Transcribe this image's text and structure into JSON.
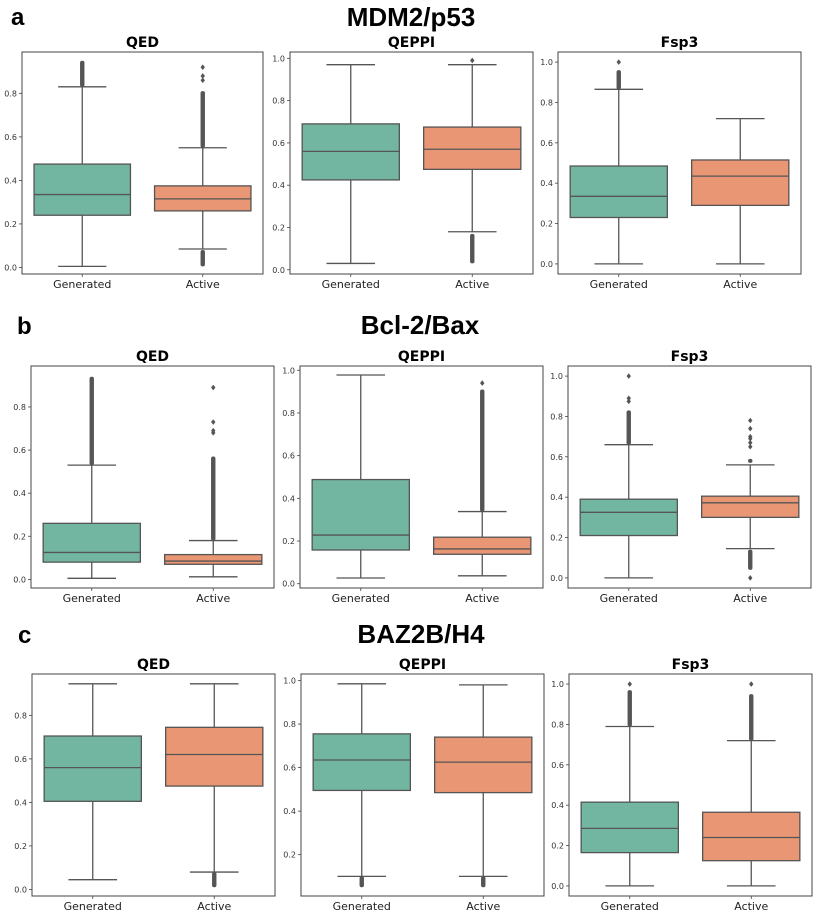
{
  "colors": {
    "generated": "#72b6a1",
    "active": "#e99674",
    "line": "#555555",
    "axis": "#444444"
  },
  "chart_data": [
    {
      "panel": "a",
      "group": "MDM2/p53",
      "title": "QED",
      "type": "box",
      "categories": [
        "Generated",
        "Active"
      ],
      "yticks": [
        "0.0",
        "0.2",
        "0.4",
        "0.6",
        "0.8"
      ],
      "ytick_values": [
        0,
        0.2,
        0.4,
        0.6,
        0.8
      ],
      "ylim": [
        -0.03,
        0.99
      ],
      "series": [
        {
          "name": "Generated",
          "whisker_low": 0.005,
          "q1": 0.24,
          "median": 0.335,
          "q3": 0.475,
          "whisker_high": 0.83,
          "outliers_high": [
            0.83,
            0.95
          ],
          "outliers_low": []
        },
        {
          "name": "Active",
          "whisker_low": 0.085,
          "q1": 0.26,
          "median": 0.315,
          "q3": 0.375,
          "whisker_high": 0.55,
          "outliers_high": [
            0.55,
            0.81
          ],
          "outlier_points_high": [
            0.86,
            0.88,
            0.92
          ],
          "outliers_low": [
            0.005,
            0.08
          ]
        }
      ]
    },
    {
      "panel": "a",
      "group": "MDM2/p53",
      "title": "QEPPI",
      "type": "box",
      "categories": [
        "Generated",
        "Active"
      ],
      "yticks": [
        "0.0",
        "0.2",
        "0.4",
        "0.6",
        "0.8",
        "1.0"
      ],
      "ytick_values": [
        0,
        0.2,
        0.4,
        0.6,
        0.8,
        1.0
      ],
      "ylim": [
        -0.02,
        1.03
      ],
      "series": [
        {
          "name": "Generated",
          "whisker_low": 0.03,
          "q1": 0.425,
          "median": 0.56,
          "q3": 0.69,
          "whisker_high": 0.97,
          "outliers_high": [],
          "outliers_low": []
        },
        {
          "name": "Active",
          "whisker_low": 0.18,
          "q1": 0.475,
          "median": 0.57,
          "q3": 0.675,
          "whisker_high": 0.97,
          "outliers_high": [],
          "outlier_points_high": [
            0.99
          ],
          "outliers_low": [
            0.03,
            0.17
          ]
        }
      ]
    },
    {
      "panel": "a",
      "group": "MDM2/p53",
      "title": "Fsp3",
      "type": "box",
      "categories": [
        "Generated",
        "Active"
      ],
      "yticks": [
        "0.0",
        "0.2",
        "0.4",
        "0.6",
        "0.8",
        "1.0"
      ],
      "ytick_values": [
        0,
        0.2,
        0.4,
        0.6,
        0.8,
        1.0
      ],
      "ylim": [
        -0.05,
        1.05
      ],
      "series": [
        {
          "name": "Generated",
          "whisker_low": 0.0,
          "q1": 0.23,
          "median": 0.335,
          "q3": 0.485,
          "whisker_high": 0.865,
          "outliers_high": [
            0.865,
            0.96
          ],
          "outlier_points_high": [
            1.0
          ],
          "outliers_low": []
        },
        {
          "name": "Active",
          "whisker_low": 0.0,
          "q1": 0.29,
          "median": 0.435,
          "q3": 0.515,
          "whisker_high": 0.72,
          "outliers_high": [],
          "outliers_low": []
        }
      ]
    },
    {
      "panel": "b",
      "group": "Bcl-2/Bax",
      "title": "QED",
      "type": "box",
      "categories": [
        "Generated",
        "Active"
      ],
      "yticks": [
        "0.0",
        "0.2",
        "0.4",
        "0.6",
        "0.8"
      ],
      "ytick_values": [
        0,
        0.2,
        0.4,
        0.6,
        0.8
      ],
      "ylim": [
        -0.04,
        0.99
      ],
      "series": [
        {
          "name": "Generated",
          "whisker_low": 0.005,
          "q1": 0.08,
          "median": 0.125,
          "q3": 0.26,
          "whisker_high": 0.53,
          "outliers_high": [
            0.53,
            0.94
          ],
          "outliers_low": []
        },
        {
          "name": "Active",
          "whisker_low": 0.012,
          "q1": 0.07,
          "median": 0.085,
          "q3": 0.115,
          "whisker_high": 0.18,
          "outliers_high": [
            0.18,
            0.57
          ],
          "outlier_points_high": [
            0.68,
            0.69,
            0.73,
            0.89
          ],
          "outliers_low": []
        }
      ]
    },
    {
      "panel": "b",
      "group": "Bcl-2/Bax",
      "title": "QEPPI",
      "type": "box",
      "categories": [
        "Generated",
        "Active"
      ],
      "yticks": [
        "0.0",
        "0.2",
        "0.4",
        "0.6",
        "0.8",
        "1.0"
      ],
      "ytick_values": [
        0,
        0.2,
        0.4,
        0.6,
        0.8,
        1.0
      ],
      "ylim": [
        -0.02,
        1.02
      ],
      "series": [
        {
          "name": "Generated",
          "whisker_low": 0.027,
          "q1": 0.158,
          "median": 0.228,
          "q3": 0.488,
          "whisker_high": 0.978,
          "outliers_high": [],
          "outliers_low": []
        },
        {
          "name": "Active",
          "whisker_low": 0.037,
          "q1": 0.138,
          "median": 0.163,
          "q3": 0.218,
          "whisker_high": 0.338,
          "outliers_high": [
            0.338,
            0.91
          ],
          "outlier_points_high": [
            0.94
          ],
          "outliers_low": []
        }
      ]
    },
    {
      "panel": "b",
      "group": "Bcl-2/Bax",
      "title": "Fsp3",
      "type": "box",
      "categories": [
        "Generated",
        "Active"
      ],
      "yticks": [
        "0.0",
        "0.2",
        "0.4",
        "0.6",
        "0.8",
        "1.0"
      ],
      "ytick_values": [
        0,
        0.2,
        0.4,
        0.6,
        0.8,
        1.0
      ],
      "ylim": [
        -0.05,
        1.05
      ],
      "series": [
        {
          "name": "Generated",
          "whisker_low": 0.0,
          "q1": 0.21,
          "median": 0.325,
          "q3": 0.39,
          "whisker_high": 0.66,
          "outliers_high": [
            0.66,
            0.83
          ],
          "outlier_points_high": [
            0.875,
            0.89,
            1.0
          ],
          "outliers_low": []
        },
        {
          "name": "Active",
          "whisker_low": 0.145,
          "q1": 0.3,
          "median": 0.372,
          "q3": 0.405,
          "whisker_high": 0.56,
          "outliers_high": [
            0.57,
            0.59
          ],
          "outlier_points_high": [
            0.65,
            0.67,
            0.69,
            0.7,
            0.74,
            0.78
          ],
          "outliers_low": [
            0.04,
            0.14
          ],
          "outlier_points_low": [
            0.0
          ]
        }
      ]
    },
    {
      "panel": "c",
      "group": "BAZ2B/H4",
      "title": "QED",
      "type": "box",
      "categories": [
        "Generated",
        "Active"
      ],
      "yticks": [
        "0.0",
        "0.2",
        "0.4",
        "0.6",
        "0.8"
      ],
      "ytick_values": [
        0,
        0.2,
        0.4,
        0.6,
        0.8
      ],
      "ylim": [
        -0.03,
        0.99
      ],
      "series": [
        {
          "name": "Generated",
          "whisker_low": 0.045,
          "q1": 0.405,
          "median": 0.56,
          "q3": 0.705,
          "whisker_high": 0.945,
          "outliers_high": [],
          "outliers_low": []
        },
        {
          "name": "Active",
          "whisker_low": 0.08,
          "q1": 0.475,
          "median": 0.62,
          "q3": 0.745,
          "whisker_high": 0.945,
          "outliers_high": [],
          "outliers_low": [
            0.01,
            0.08
          ]
        }
      ]
    },
    {
      "panel": "c",
      "group": "BAZ2B/H4",
      "title": "QEPPI",
      "type": "box",
      "categories": [
        "Generated",
        "Active"
      ],
      "yticks": [
        "0.2",
        "0.4",
        "0.6",
        "0.8",
        "1.0"
      ],
      "ytick_values": [
        0.2,
        0.4,
        0.6,
        0.8,
        1.0
      ],
      "ylim": [
        0.01,
        1.03
      ],
      "series": [
        {
          "name": "Generated",
          "whisker_low": 0.1,
          "q1": 0.495,
          "median": 0.635,
          "q3": 0.755,
          "whisker_high": 0.985,
          "outliers_high": [],
          "outliers_low": [
            0.05,
            0.1
          ]
        },
        {
          "name": "Active",
          "whisker_low": 0.1,
          "q1": 0.485,
          "median": 0.625,
          "q3": 0.74,
          "whisker_high": 0.98,
          "outliers_high": [],
          "outliers_low": [
            0.05,
            0.1
          ]
        }
      ]
    },
    {
      "panel": "c",
      "group": "BAZ2B/H4",
      "title": "Fsp3",
      "type": "box",
      "categories": [
        "Generated",
        "Active"
      ],
      "yticks": [
        "0.0",
        "0.2",
        "0.4",
        "0.6",
        "0.8",
        "1.0"
      ],
      "ytick_values": [
        0,
        0.2,
        0.4,
        0.6,
        0.8,
        1.0
      ],
      "ylim": [
        -0.05,
        1.05
      ],
      "series": [
        {
          "name": "Generated",
          "whisker_low": 0.0,
          "q1": 0.165,
          "median": 0.285,
          "q3": 0.415,
          "whisker_high": 0.79,
          "outliers_high": [
            0.79,
            0.97
          ],
          "outlier_points_high": [
            1.0
          ],
          "outliers_low": []
        },
        {
          "name": "Active",
          "whisker_low": 0.0,
          "q1": 0.125,
          "median": 0.24,
          "q3": 0.365,
          "whisker_high": 0.72,
          "outliers_high": [
            0.72,
            0.95
          ],
          "outlier_points_high": [
            1.0
          ],
          "outliers_low": []
        }
      ]
    }
  ],
  "rows": [
    {
      "letter": "a",
      "title": "MDM2/p53"
    },
    {
      "letter": "b",
      "title": "Bcl-2/Bax"
    },
    {
      "letter": "c",
      "title": "BAZ2B/H4"
    }
  ]
}
